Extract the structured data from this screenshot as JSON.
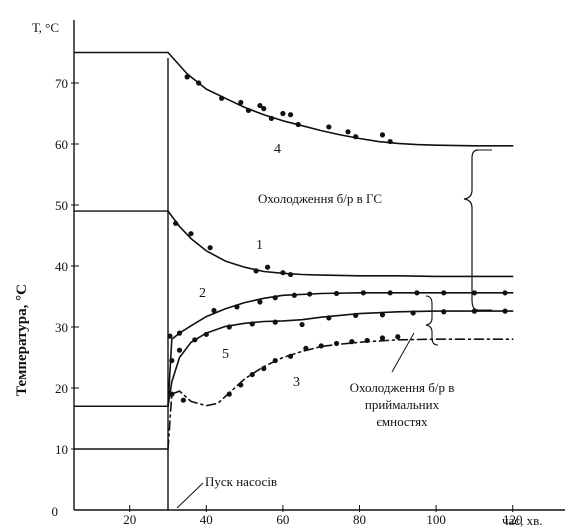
{
  "chart_data": {
    "type": "line",
    "title": "",
    "ylabel_top": "Т, °С",
    "ylabel": "Температура, °С",
    "xlabel": "час, хв.",
    "xlim": [
      -40,
      125
    ],
    "ylim": [
      0,
      80
    ],
    "x_ticks": [
      "20",
      "40",
      "60",
      "80",
      "100",
      "120"
    ],
    "x_tick_values": [
      20,
      40,
      60,
      80,
      100,
      120
    ],
    "y_ticks": [
      "10",
      "20",
      "30",
      "40",
      "50",
      "60",
      "70"
    ],
    "y_tick_values": [
      10,
      20,
      30,
      40,
      50,
      60,
      70
    ],
    "grid": false,
    "annotations": {
      "pump_start": "Пуск насосів",
      "gs_cooling": "Охолодження б/р в  ГС",
      "tank_cooling_lines": [
        "Охолодження б/р в",
        "приймальних",
        "ємностях"
      ]
    },
    "series": [
      {
        "name": "4",
        "style": "solid",
        "initial_value": 75,
        "x": [
          30,
          35,
          40,
          45,
          50,
          55,
          60,
          65,
          70,
          75,
          80,
          85,
          90,
          95,
          100,
          110,
          120
        ],
        "values": [
          75,
          71.5,
          69,
          67.5,
          66,
          64.8,
          63.8,
          63,
          62.2,
          61.5,
          60.9,
          60.4,
          60.1,
          59.9,
          59.8,
          59.7,
          59.7
        ],
        "points_x": [
          35,
          38,
          44,
          49,
          51,
          54,
          55,
          57,
          60,
          62,
          64,
          72,
          77,
          79,
          86,
          88
        ],
        "points_y": [
          71,
          70,
          67.5,
          66.8,
          65.5,
          66.3,
          65.8,
          64.2,
          65,
          64.8,
          63.2,
          62.8,
          62,
          61.2,
          61.5,
          60.4
        ]
      },
      {
        "name": "1",
        "style": "solid",
        "initial_value": 49,
        "x": [
          30,
          33,
          36,
          40,
          45,
          50,
          55,
          60,
          65,
          70,
          80,
          90,
          100,
          110,
          120
        ],
        "values": [
          49,
          46.5,
          44.5,
          42.5,
          40.8,
          39.8,
          39.1,
          38.8,
          38.6,
          38.5,
          38.4,
          38.4,
          38.3,
          38.3,
          38.3
        ],
        "points_x": [
          32,
          36,
          41,
          53,
          56,
          60,
          62
        ],
        "points_y": [
          47,
          45.3,
          43,
          39.2,
          39.8,
          38.9,
          38.6
        ]
      },
      {
        "name": "2",
        "style": "solid",
        "initial_value": 17,
        "x": [
          30,
          31,
          33,
          36,
          40,
          45,
          50,
          55,
          60,
          70,
          80,
          90,
          100,
          110,
          120
        ],
        "values": [
          17,
          28,
          29,
          30.2,
          31.7,
          33,
          34,
          34.7,
          35.2,
          35.5,
          35.6,
          35.6,
          35.6,
          35.6,
          35.6
        ],
        "points_x": [
          30.5,
          33,
          42,
          48,
          54,
          58,
          63,
          67,
          74,
          81,
          88,
          95,
          102,
          110,
          118
        ],
        "points_y": [
          28.5,
          29,
          32.7,
          33.3,
          34.1,
          34.8,
          35.2,
          35.4,
          35.5,
          35.6,
          35.6,
          35.6,
          35.6,
          35.6,
          35.6
        ]
      },
      {
        "name": "5",
        "style": "solid",
        "initial_value": 17,
        "x": [
          30,
          31,
          33,
          36,
          40,
          45,
          50,
          55,
          60,
          65,
          70,
          80,
          90,
          100,
          110,
          120
        ],
        "values": [
          17,
          21,
          25,
          27.5,
          29,
          30.1,
          30.6,
          30.9,
          31,
          31.2,
          31.6,
          32.2,
          32.5,
          32.6,
          32.6,
          32.6
        ],
        "points_x": [
          31,
          33,
          37,
          40,
          46,
          52,
          58,
          65,
          72,
          79,
          86,
          94,
          102,
          110,
          118
        ],
        "points_y": [
          24.5,
          26.2,
          27.9,
          28.8,
          30,
          30.5,
          30.8,
          30.4,
          31.5,
          31.9,
          32,
          32.3,
          32.5,
          32.6,
          32.6
        ]
      },
      {
        "name": "3",
        "style": "dash-dot",
        "initial_value": 10,
        "x": [
          30,
          31,
          33,
          36,
          40,
          43,
          46,
          50,
          55,
          60,
          65,
          70,
          75,
          80,
          85,
          90,
          100,
          110,
          120
        ],
        "values": [
          10,
          19,
          19.5,
          17.8,
          17.1,
          17.5,
          19.2,
          21.5,
          23.5,
          25,
          26,
          26.8,
          27.2,
          27.5,
          27.7,
          27.9,
          28,
          28,
          28
        ],
        "points_x": [
          31,
          34,
          46,
          49,
          52,
          55,
          58,
          62,
          66,
          70,
          74,
          78,
          82,
          86,
          90
        ],
        "points_y": [
          19,
          18,
          19,
          20.5,
          22.2,
          23.2,
          24.5,
          25.2,
          26.5,
          26.9,
          27.3,
          27.6,
          27.8,
          28.2,
          28.4
        ]
      }
    ]
  }
}
